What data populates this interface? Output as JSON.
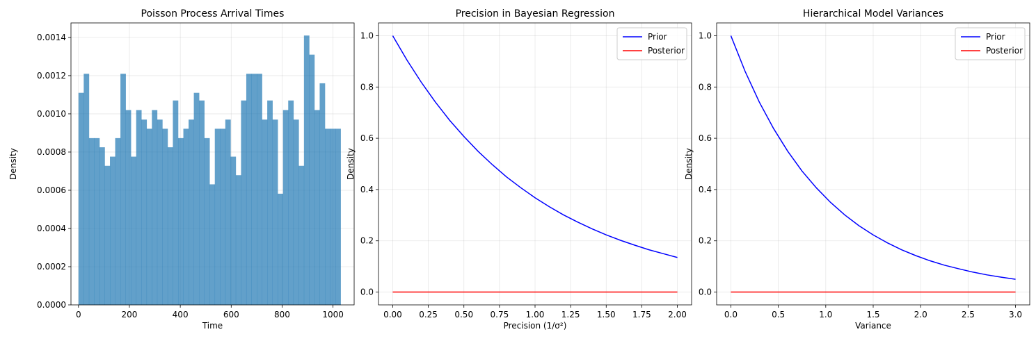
{
  "chart_data": [
    {
      "type": "bar",
      "title": "Poisson Process Arrival Times",
      "xlabel": "Time",
      "ylabel": "Density",
      "xlim": [
        -29.5,
        1083
      ],
      "ylim": [
        0,
        0.001476
      ],
      "grid": true,
      "xticks": [
        0,
        200,
        400,
        600,
        800,
        1000
      ],
      "yticks": [
        0,
        0.0002,
        0.0004,
        0.0006,
        0.0008,
        0.001,
        0.0012,
        0.0014
      ],
      "ytick_labels": [
        "0.0000",
        "0.0002",
        "0.0004",
        "0.0006",
        "0.0008",
        "0.0010",
        "0.0012",
        "0.0014"
      ],
      "bin_start": 0,
      "bin_width": 20.6,
      "color": "#1f77b4",
      "values": [
        0.00111,
        0.00121,
        0.000873,
        0.000873,
        0.000825,
        0.000728,
        0.000776,
        0.000873,
        0.00121,
        0.00102,
        0.000776,
        0.00102,
        0.00097,
        0.000922,
        0.00102,
        0.00097,
        0.000922,
        0.000825,
        0.00107,
        0.000873,
        0.000922,
        0.00097,
        0.00111,
        0.00107,
        0.000873,
        0.000631,
        0.000922,
        0.000922,
        0.00097,
        0.000776,
        0.000679,
        0.00107,
        0.00121,
        0.00121,
        0.00121,
        0.00097,
        0.00107,
        0.00097,
        0.000582,
        0.00102,
        0.00107,
        0.00097,
        0.000728,
        0.00141,
        0.00131,
        0.00102,
        0.00116,
        0.000922,
        0.000922,
        0.000922
      ]
    },
    {
      "type": "line",
      "title": "Precision in Bayesian Regression",
      "xlabel": "Precision (1/σ²)",
      "ylabel": "Density",
      "xlim": [
        -0.1,
        2.1
      ],
      "ylim": [
        -0.05,
        1.05
      ],
      "grid": true,
      "xticks": [
        0,
        0.25,
        0.5,
        0.75,
        1.0,
        1.25,
        1.5,
        1.75,
        2.0
      ],
      "xtick_labels": [
        "0.00",
        "0.25",
        "0.50",
        "0.75",
        "1.00",
        "1.25",
        "1.50",
        "1.75",
        "2.00"
      ],
      "yticks": [
        0,
        0.2,
        0.4,
        0.6,
        0.8,
        1.0
      ],
      "ytick_labels": [
        "0.0",
        "0.2",
        "0.4",
        "0.6",
        "0.8",
        "1.0"
      ],
      "legend": "top-right",
      "series": [
        {
          "name": "Prior",
          "color": "#0000ff",
          "x": [
            0,
            0.1,
            0.2,
            0.3,
            0.4,
            0.5,
            0.6,
            0.7,
            0.8,
            0.9,
            1.0,
            1.1,
            1.2,
            1.3,
            1.4,
            1.5,
            1.6,
            1.7,
            1.8,
            1.9,
            2.0
          ],
          "y": [
            1.0,
            0.905,
            0.819,
            0.741,
            0.67,
            0.607,
            0.549,
            0.497,
            0.449,
            0.407,
            0.368,
            0.333,
            0.301,
            0.273,
            0.247,
            0.223,
            0.202,
            0.183,
            0.165,
            0.15,
            0.135
          ]
        },
        {
          "name": "Posterior",
          "color": "#ff0000",
          "x": [
            0,
            2.0
          ],
          "y": [
            0,
            0
          ]
        }
      ]
    },
    {
      "type": "line",
      "title": "Hierarchical Model Variances",
      "xlabel": "Variance",
      "ylabel": "Density",
      "xlim": [
        -0.15,
        3.15
      ],
      "ylim": [
        -0.05,
        1.05
      ],
      "grid": true,
      "xticks": [
        0,
        0.5,
        1.0,
        1.5,
        2.0,
        2.5,
        3.0
      ],
      "xtick_labels": [
        "0.0",
        "0.5",
        "1.0",
        "1.5",
        "2.0",
        "2.5",
        "3.0"
      ],
      "yticks": [
        0,
        0.2,
        0.4,
        0.6,
        0.8,
        1.0
      ],
      "ytick_labels": [
        "0.0",
        "0.2",
        "0.4",
        "0.6",
        "0.8",
        "1.0"
      ],
      "legend": "top-right",
      "series": [
        {
          "name": "Prior",
          "color": "#0000ff",
          "x": [
            0,
            0.15,
            0.3,
            0.45,
            0.6,
            0.75,
            0.9,
            1.05,
            1.2,
            1.35,
            1.5,
            1.65,
            1.8,
            1.95,
            2.1,
            2.25,
            2.4,
            2.55,
            2.7,
            2.85,
            3.0
          ],
          "y": [
            1.0,
            0.861,
            0.741,
            0.638,
            0.549,
            0.472,
            0.407,
            0.35,
            0.301,
            0.259,
            0.223,
            0.192,
            0.165,
            0.142,
            0.122,
            0.105,
            0.091,
            0.078,
            0.067,
            0.058,
            0.05
          ]
        },
        {
          "name": "Posterior",
          "color": "#ff0000",
          "x": [
            0,
            3.0
          ],
          "y": [
            0,
            0
          ]
        }
      ]
    }
  ]
}
